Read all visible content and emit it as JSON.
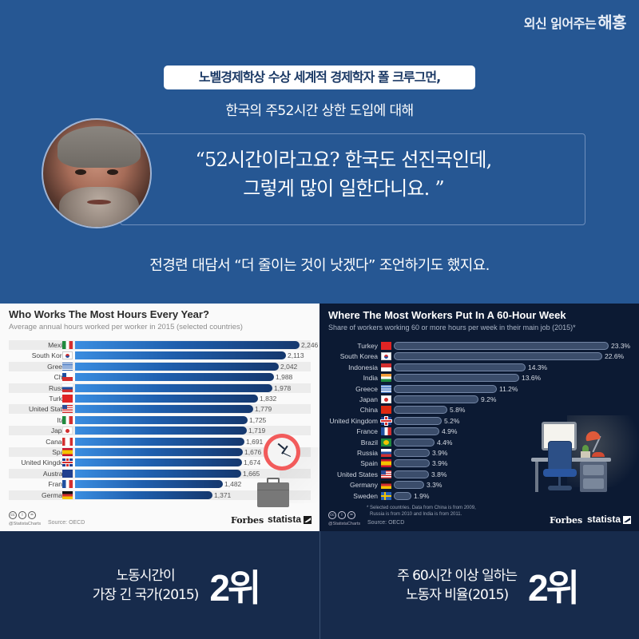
{
  "brand": {
    "prefix": "외신 읽어주는",
    "name": "해홍"
  },
  "header": {
    "pill": "노벨경제학상 수상 세계적 경제학자 폴 크루그먼,",
    "subline": "한국의 주52시간 상한 도입에 대해",
    "quote_line1": "“52시간이라고요?  한국도 선진국인데,",
    "quote_line2": "그렇게 많이 일한다니요. ”",
    "footline": "전경련 대담서 “더 줄이는 것이 낫겠다” 조언하기도 했지요."
  },
  "left_chart_meta": {
    "handle": "@StatistaCharts",
    "source": "Source: OECD",
    "forbes": "Forbes",
    "statista": "statista"
  },
  "right_chart_meta": {
    "note_line1": "* Selected countries. Data from China is from 2009,",
    "note_line2": "Russia is from 2010 and India is from 2011.",
    "handle": "@StatistaCharts",
    "source": "Source: OECD",
    "forbes": "Forbes",
    "statista": "statista"
  },
  "stats": {
    "left": {
      "line1": "노동시간이",
      "line2": "가장 긴 국가(2015)",
      "rank": "2위"
    },
    "right": {
      "line1": "주 60시간 이상 일하는",
      "line2": "노동자 비율(2015)",
      "rank": "2위"
    }
  },
  "colors": {
    "page_blue": "#265793",
    "bottom_navy": "#172b4c",
    "left_bar_start": "#3a8de0",
    "left_bar_end": "#15386e",
    "right_bg": "#0c1a33",
    "right_bar": "#3b4d6b",
    "clock_red": "#f25b5b"
  },
  "chart_data": [
    {
      "type": "bar",
      "orientation": "horizontal",
      "title": "Who Works The Most Hours Every Year?",
      "subtitle": "Average annual hours worked per worker in 2015 (selected countries)",
      "xlabel": "",
      "ylabel": "",
      "categories": [
        "Mexico",
        "South Korea",
        "Greece",
        "Chile",
        "Russia",
        "Turkey",
        "United States",
        "Italy",
        "Japan",
        "Canada",
        "Spain",
        "United Kingdom",
        "Australia",
        "France",
        "Germany"
      ],
      "values": [
        2246,
        2113,
        2042,
        1988,
        1978,
        1832,
        1779,
        1725,
        1719,
        1691,
        1676,
        1674,
        1665,
        1482,
        1371
      ],
      "value_labels": [
        "2,246",
        "2,113",
        "2,042",
        "1,988",
        "1,978",
        "1,832",
        "1,779",
        "1,725",
        "1,719",
        "1,691",
        "1,676",
        "1,674",
        "1,665",
        "1,482",
        "1,371"
      ],
      "flags": [
        "mx",
        "kr",
        "gr",
        "cl",
        "ru",
        "tr",
        "us",
        "it",
        "jp",
        "ca",
        "es",
        "uk",
        "au",
        "fr",
        "de"
      ],
      "source": "Source: OECD",
      "grid": false,
      "legend": "none"
    },
    {
      "type": "bar",
      "orientation": "horizontal",
      "title": "Where The Most Workers Put In A 60-Hour Week",
      "subtitle": "Share of workers working 60 or more hours per week in their main job (2015)*",
      "xlabel": "",
      "ylabel": "",
      "categories": [
        "Turkey",
        "South Korea",
        "Indonesia",
        "India",
        "Greece",
        "Japan",
        "China",
        "United Kingdom",
        "France",
        "Brazil",
        "Russia",
        "Spain",
        "United States",
        "Germany",
        "Sweden"
      ],
      "values": [
        23.3,
        22.6,
        14.3,
        13.6,
        11.2,
        9.2,
        5.8,
        5.2,
        4.9,
        4.4,
        3.9,
        3.9,
        3.8,
        3.3,
        1.9
      ],
      "value_labels": [
        "23.3%",
        "22.6%",
        "14.3%",
        "13.6%",
        "11.2%",
        "9.2%",
        "5.8%",
        "5.2%",
        "4.9%",
        "4.4%",
        "3.9%",
        "3.9%",
        "3.8%",
        "3.3%",
        "1.9%"
      ],
      "flags": [
        "tr",
        "kr",
        "id",
        "in",
        "gr",
        "jp",
        "cn",
        "uk",
        "fr",
        "br",
        "ru",
        "es",
        "us",
        "de",
        "se"
      ],
      "unit": "%",
      "note": "* Selected countries. Data from China is from 2009, Russia is from 2010 and India is from 2011.",
      "source": "Source: OECD",
      "grid": false,
      "legend": "none"
    }
  ]
}
